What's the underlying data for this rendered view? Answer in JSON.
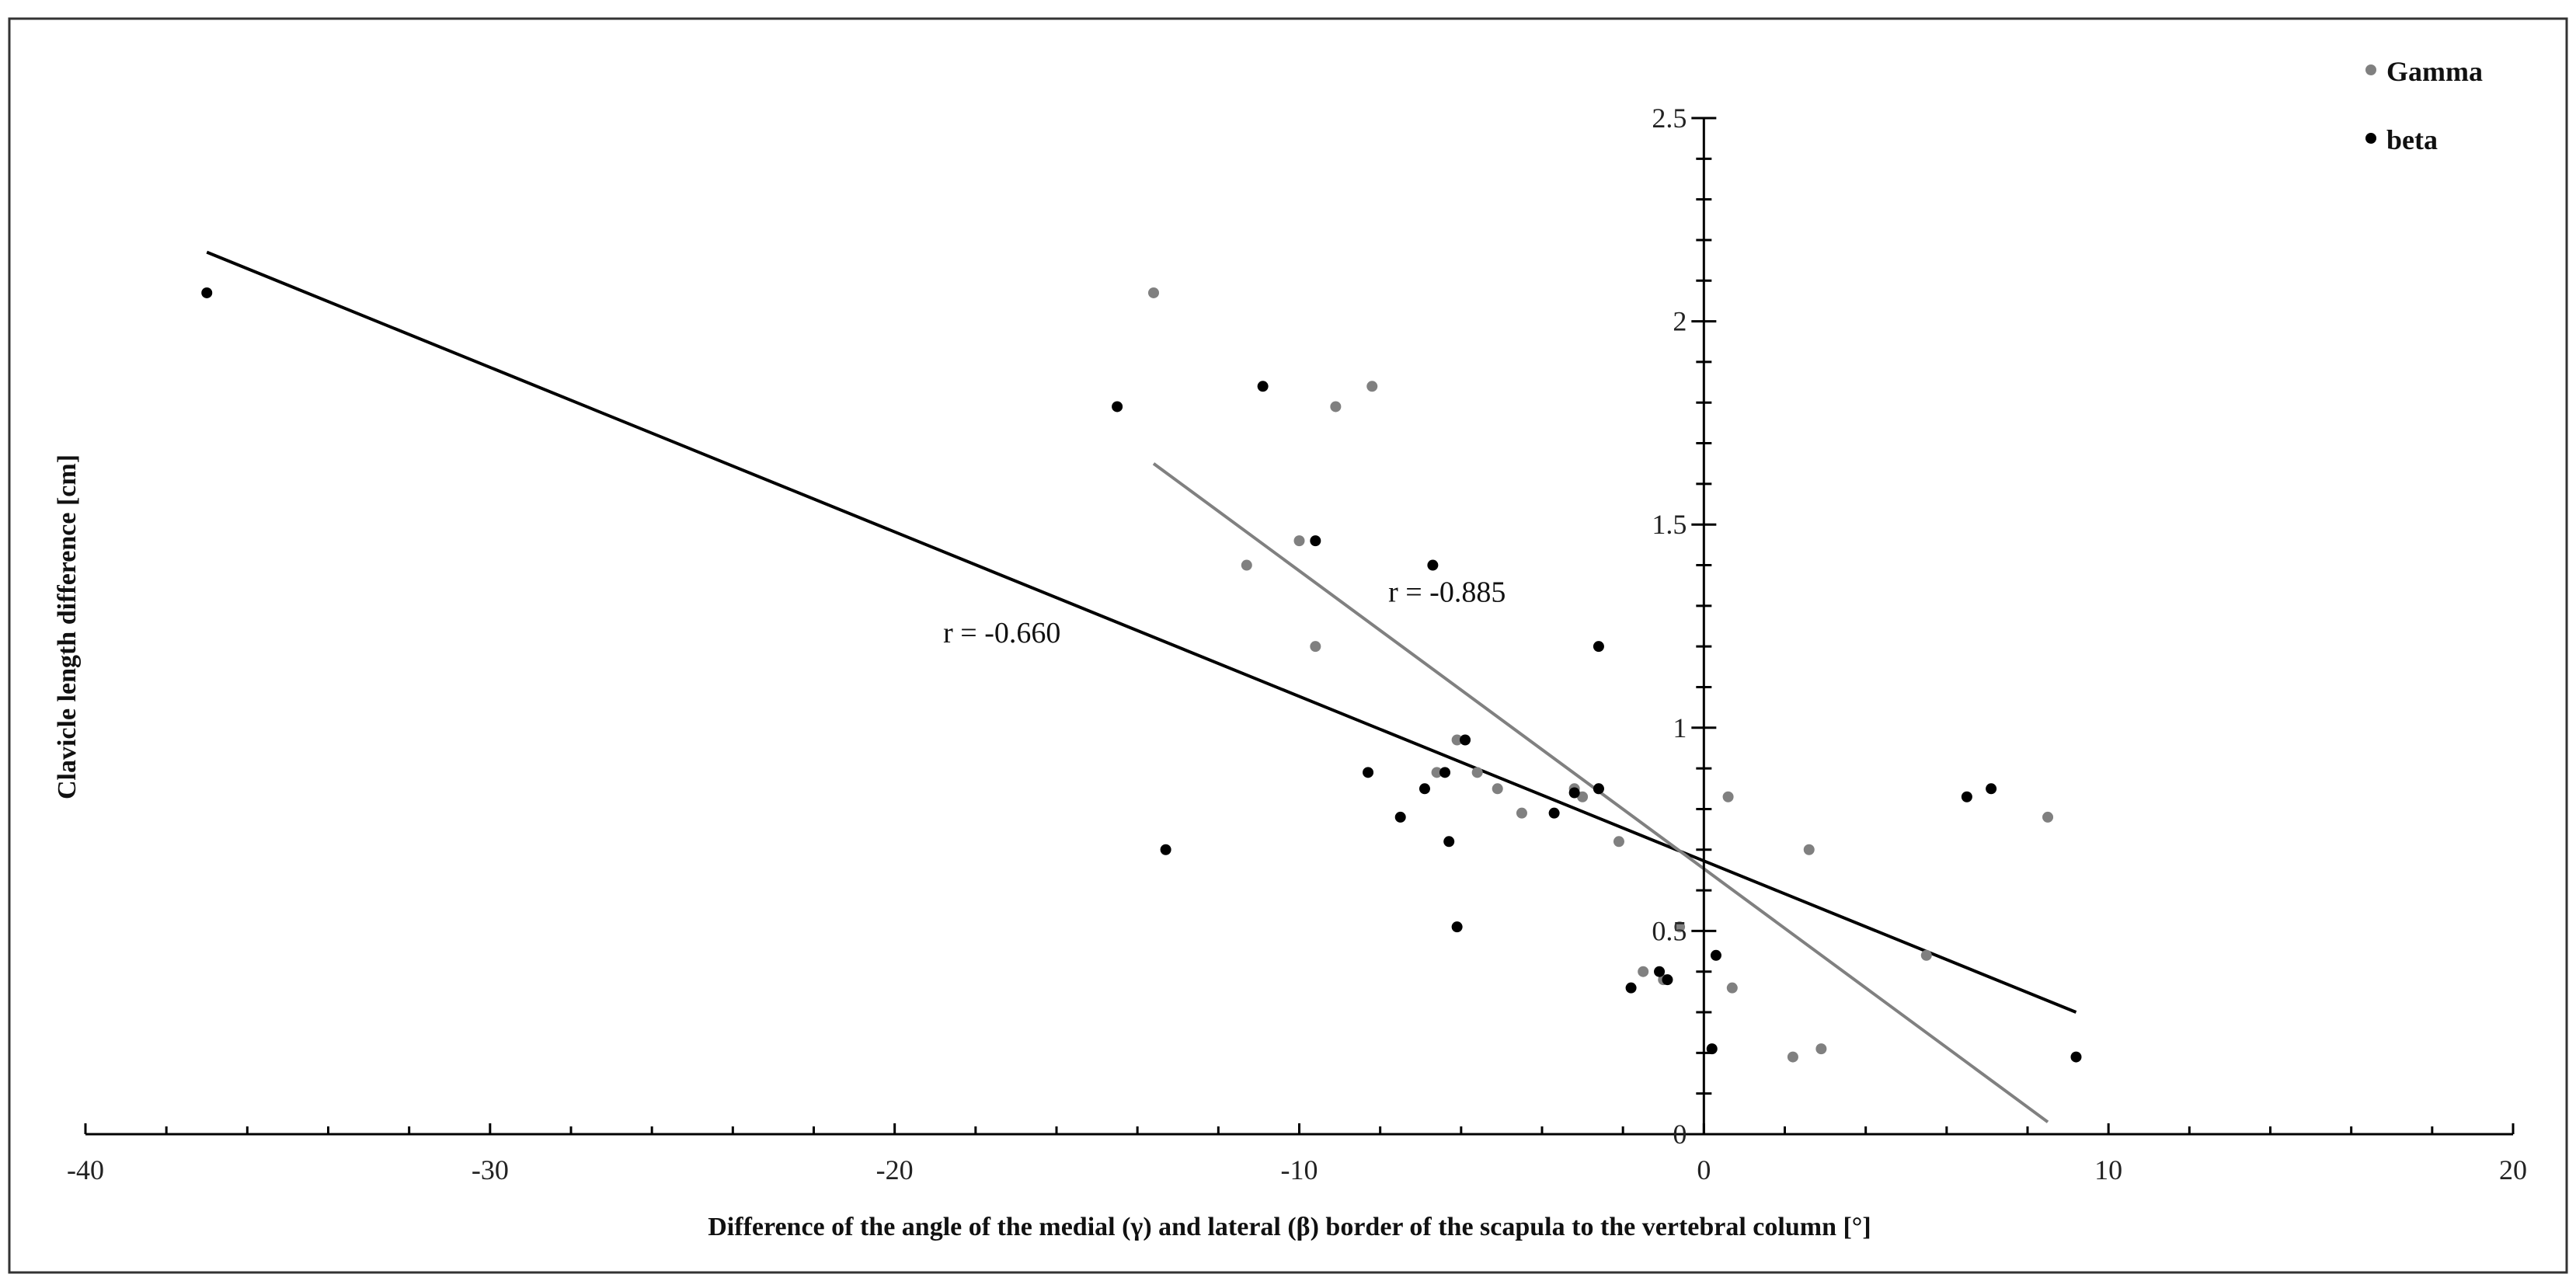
{
  "chart_data": {
    "type": "scatter",
    "xlabel": "Difference of the angle of the medial (γ) and lateral (β) border of the scapula to the vertebral column [°]",
    "ylabel": "Clavicle length difference [cm]",
    "xlim": [
      -40,
      20
    ],
    "ylim": [
      0,
      2.5
    ],
    "x_ticks": [
      "-40",
      "-30",
      "-20",
      "-10",
      "0",
      "10",
      "20"
    ],
    "y_ticks": [
      "0",
      "0.5",
      "1",
      "1.5",
      "2",
      "2.5"
    ],
    "legend_position": "top-right",
    "series": [
      {
        "name": "Gamma",
        "color": "#808080",
        "points": [
          [
            -13.6,
            2.07
          ],
          [
            -8.2,
            1.84
          ],
          [
            -9.1,
            1.79
          ],
          [
            -10.0,
            1.46
          ],
          [
            -11.3,
            1.4
          ],
          [
            -9.6,
            1.2
          ],
          [
            -6.1,
            0.97
          ],
          [
            -5.6,
            0.89
          ],
          [
            -6.6,
            0.89
          ],
          [
            -5.1,
            0.85
          ],
          [
            -4.5,
            0.79
          ],
          [
            -3.2,
            0.85
          ],
          [
            -3.0,
            0.83
          ],
          [
            -2.6,
            0.85
          ],
          [
            -2.1,
            0.72
          ],
          [
            0.6,
            0.83
          ],
          [
            2.6,
            0.7
          ],
          [
            8.5,
            0.78
          ],
          [
            -0.6,
            0.51
          ],
          [
            5.5,
            0.44
          ],
          [
            -1.5,
            0.4
          ],
          [
            -1.0,
            0.38
          ],
          [
            0.7,
            0.36
          ],
          [
            2.2,
            0.19
          ],
          [
            2.9,
            0.21
          ]
        ]
      },
      {
        "name": "beta",
        "color": "#000000",
        "points": [
          [
            -37.0,
            2.07
          ],
          [
            -14.5,
            1.79
          ],
          [
            -10.9,
            1.84
          ],
          [
            -9.6,
            1.46
          ],
          [
            -6.7,
            1.4
          ],
          [
            -2.6,
            1.2
          ],
          [
            -5.9,
            0.97
          ],
          [
            -8.3,
            0.89
          ],
          [
            -6.4,
            0.89
          ],
          [
            -6.9,
            0.85
          ],
          [
            -3.2,
            0.84
          ],
          [
            -2.6,
            0.85
          ],
          [
            -3.7,
            0.79
          ],
          [
            -7.5,
            0.78
          ],
          [
            -6.3,
            0.72
          ],
          [
            -13.3,
            0.7
          ],
          [
            -6.1,
            0.51
          ],
          [
            6.5,
            0.83
          ],
          [
            7.1,
            0.85
          ],
          [
            0.3,
            0.44
          ],
          [
            -1.1,
            0.4
          ],
          [
            -0.9,
            0.38
          ],
          [
            -1.8,
            0.36
          ],
          [
            0.2,
            0.21
          ],
          [
            9.2,
            0.19
          ]
        ]
      }
    ],
    "trendlines": [
      {
        "series": "beta",
        "color": "#000000",
        "from": [
          -37.0,
          2.17
        ],
        "to": [
          9.2,
          0.3
        ],
        "label": "r = -0.660",
        "label_at": [
          -18.8,
          1.21
        ]
      },
      {
        "series": "Gamma",
        "color": "#808080",
        "from": [
          -13.6,
          1.65
        ],
        "to": [
          8.5,
          0.03
        ],
        "label": "r = -0.885",
        "label_at": [
          -7.8,
          1.31
        ]
      }
    ]
  }
}
